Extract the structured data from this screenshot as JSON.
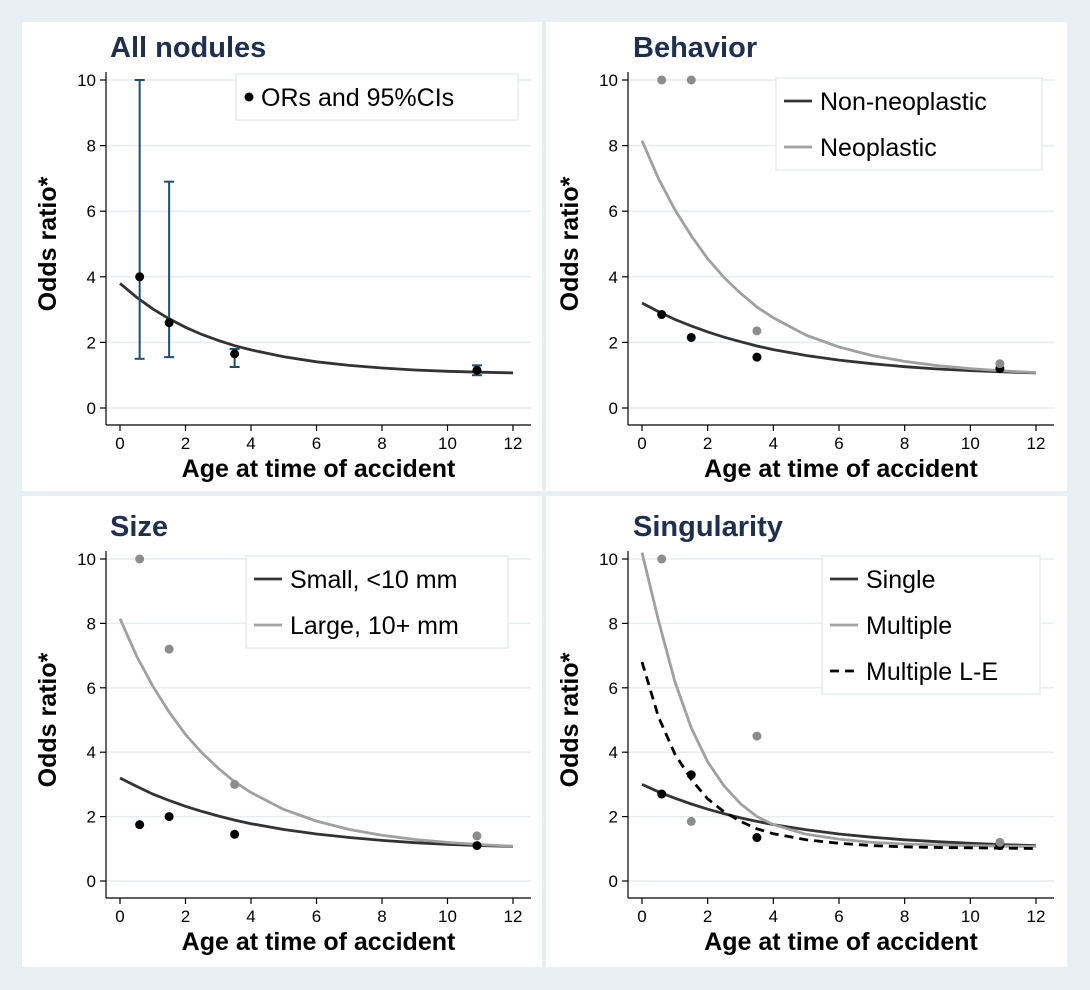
{
  "chart_data": [
    {
      "type": "scatter",
      "title": "All nodules",
      "xlabel": "Age at time of accident",
      "ylabel": "Odds ratio*",
      "xlim": [
        0,
        12
      ],
      "ylim": [
        0,
        10
      ],
      "xticks": [
        "0",
        "2",
        "4",
        "6",
        "8",
        "10",
        "12"
      ],
      "yticks": [
        "0",
        "2",
        "4",
        "6",
        "8",
        "10"
      ],
      "grid": true,
      "legend_position": "top-right",
      "series": [
        {
          "kind": "points_ci",
          "name": "ORs and 95%CIs",
          "color": "#000000",
          "ci_color": "#1b4f72",
          "points": [
            {
              "x": 0.6,
              "y": 4.0,
              "lo": 1.5,
              "hi": 10.0
            },
            {
              "x": 1.5,
              "y": 2.6,
              "lo": 1.55,
              "hi": 6.9
            },
            {
              "x": 3.5,
              "y": 1.65,
              "lo": 1.25,
              "hi": 1.8
            },
            {
              "x": 10.9,
              "y": 1.15,
              "lo": 1.0,
              "hi": 1.3
            }
          ]
        },
        {
          "kind": "curve",
          "color": "#333333",
          "dash": false,
          "x": [
            0,
            0.5,
            1,
            1.5,
            2,
            2.5,
            3,
            3.5,
            4,
            5,
            6,
            7,
            8,
            9,
            10,
            11,
            12
          ],
          "y": [
            3.8,
            3.38,
            3.02,
            2.72,
            2.46,
            2.24,
            2.06,
            1.9,
            1.77,
            1.56,
            1.41,
            1.3,
            1.22,
            1.16,
            1.12,
            1.09,
            1.07
          ]
        }
      ]
    },
    {
      "type": "scatter",
      "title": "Behavior",
      "xlabel": "Age at time of accident",
      "ylabel": "Odds ratio*",
      "xlim": [
        0,
        12
      ],
      "ylim": [
        0,
        10
      ],
      "xticks": [
        "0",
        "2",
        "4",
        "6",
        "8",
        "10",
        "12"
      ],
      "yticks": [
        "0",
        "2",
        "4",
        "6",
        "8",
        "10"
      ],
      "grid": true,
      "legend_position": "top-right",
      "series": [
        {
          "kind": "curve",
          "name": "Non-neoplastic",
          "color": "#333333",
          "dash": false,
          "x": [
            0,
            0.5,
            1,
            1.5,
            2,
            2.5,
            3,
            3.5,
            4,
            5,
            6,
            7,
            8,
            9,
            10,
            11,
            12
          ],
          "y": [
            3.2,
            2.94,
            2.7,
            2.5,
            2.32,
            2.16,
            2.02,
            1.89,
            1.78,
            1.6,
            1.46,
            1.35,
            1.26,
            1.19,
            1.14,
            1.1,
            1.07
          ]
        },
        {
          "kind": "curve",
          "name": "Neoplastic",
          "color": "#a0a0a0",
          "dash": false,
          "x": [
            0,
            0.5,
            1,
            1.5,
            2,
            2.5,
            3,
            3.5,
            4,
            5,
            6,
            7,
            8,
            9,
            10,
            11,
            12
          ],
          "y": [
            8.15,
            7.0,
            6.05,
            5.25,
            4.55,
            3.98,
            3.5,
            3.08,
            2.75,
            2.22,
            1.86,
            1.6,
            1.42,
            1.29,
            1.2,
            1.13,
            1.08
          ]
        },
        {
          "kind": "points",
          "color": "#000000",
          "points": [
            {
              "x": 0.6,
              "y": 2.85
            },
            {
              "x": 1.5,
              "y": 2.15
            },
            {
              "x": 3.5,
              "y": 1.55
            },
            {
              "x": 10.9,
              "y": 1.2
            }
          ]
        },
        {
          "kind": "points",
          "color": "#8c8c8c",
          "points": [
            {
              "x": 0.6,
              "y": 10.0
            },
            {
              "x": 1.5,
              "y": 10.0
            },
            {
              "x": 3.5,
              "y": 2.35
            },
            {
              "x": 10.9,
              "y": 1.35
            }
          ]
        }
      ]
    },
    {
      "type": "scatter",
      "title": "Size",
      "xlabel": "Age at time of accident",
      "ylabel": "Odds ratio*",
      "xlim": [
        0,
        12
      ],
      "ylim": [
        0,
        10
      ],
      "xticks": [
        "0",
        "2",
        "4",
        "6",
        "8",
        "10",
        "12"
      ],
      "yticks": [
        "0",
        "2",
        "4",
        "6",
        "8",
        "10"
      ],
      "grid": true,
      "legend_position": "top-right",
      "series": [
        {
          "kind": "curve",
          "name": "Small, <10 mm",
          "color": "#333333",
          "dash": false,
          "x": [
            0,
            0.5,
            1,
            1.5,
            2,
            2.5,
            3,
            3.5,
            4,
            5,
            6,
            7,
            8,
            9,
            10,
            11,
            12
          ],
          "y": [
            3.2,
            2.94,
            2.7,
            2.5,
            2.32,
            2.16,
            2.02,
            1.89,
            1.78,
            1.6,
            1.46,
            1.35,
            1.26,
            1.19,
            1.14,
            1.1,
            1.07
          ]
        },
        {
          "kind": "curve",
          "name": "Large, 10+ mm",
          "color": "#a0a0a0",
          "dash": false,
          "x": [
            0,
            0.5,
            1,
            1.5,
            2,
            2.5,
            3,
            3.5,
            4,
            5,
            6,
            7,
            8,
            9,
            10,
            11,
            12
          ],
          "y": [
            8.15,
            7.0,
            6.05,
            5.25,
            4.55,
            3.98,
            3.5,
            3.08,
            2.75,
            2.22,
            1.86,
            1.6,
            1.42,
            1.29,
            1.2,
            1.13,
            1.08
          ]
        },
        {
          "kind": "points",
          "color": "#000000",
          "points": [
            {
              "x": 0.6,
              "y": 1.75
            },
            {
              "x": 1.5,
              "y": 2.0
            },
            {
              "x": 3.5,
              "y": 1.45
            },
            {
              "x": 10.9,
              "y": 1.1
            }
          ]
        },
        {
          "kind": "points",
          "color": "#8c8c8c",
          "points": [
            {
              "x": 0.6,
              "y": 10.0
            },
            {
              "x": 1.5,
              "y": 7.2
            },
            {
              "x": 3.5,
              "y": 3.0
            },
            {
              "x": 10.9,
              "y": 1.4
            }
          ]
        }
      ]
    },
    {
      "type": "scatter",
      "title": "Singularity",
      "xlabel": "Age at time of accident",
      "ylabel": "Odds ratio*",
      "xlim": [
        0,
        12
      ],
      "ylim": [
        0,
        10
      ],
      "xticks": [
        "0",
        "2",
        "4",
        "6",
        "8",
        "10",
        "12"
      ],
      "yticks": [
        "0",
        "2",
        "4",
        "6",
        "8",
        "10"
      ],
      "grid": true,
      "legend_position": "top-right",
      "series": [
        {
          "kind": "curve",
          "name": "Single",
          "color": "#333333",
          "dash": false,
          "x": [
            0,
            0.5,
            1,
            1.5,
            2,
            2.5,
            3,
            3.5,
            4,
            5,
            6,
            7,
            8,
            9,
            10,
            11,
            12
          ],
          "y": [
            3.0,
            2.77,
            2.57,
            2.39,
            2.23,
            2.09,
            1.96,
            1.85,
            1.75,
            1.59,
            1.46,
            1.36,
            1.28,
            1.22,
            1.17,
            1.13,
            1.1
          ]
        },
        {
          "kind": "curve",
          "name": "Multiple",
          "color": "#a0a0a0",
          "dash": false,
          "x": [
            0,
            0.5,
            1,
            1.5,
            2,
            2.5,
            3,
            3.5,
            4,
            5,
            6,
            7,
            8,
            9,
            10,
            11,
            12
          ],
          "y": [
            10.2,
            8.1,
            6.2,
            4.75,
            3.7,
            2.95,
            2.4,
            2.0,
            1.75,
            1.45,
            1.3,
            1.2,
            1.15,
            1.12,
            1.1,
            1.08,
            1.07
          ]
        },
        {
          "kind": "curve",
          "name": "Multiple L-E",
          "color": "#000000",
          "dash": true,
          "x": [
            0,
            0.5,
            1,
            1.5,
            2,
            2.5,
            3,
            3.5,
            4,
            5,
            6,
            7,
            8,
            9,
            10,
            11,
            12
          ],
          "y": [
            6.8,
            5.1,
            3.95,
            3.15,
            2.55,
            2.15,
            1.85,
            1.62,
            1.47,
            1.28,
            1.17,
            1.1,
            1.06,
            1.04,
            1.03,
            1.02,
            1.01
          ]
        },
        {
          "kind": "points",
          "color": "#000000",
          "points": [
            {
              "x": 0.6,
              "y": 2.7
            },
            {
              "x": 1.5,
              "y": 3.3
            },
            {
              "x": 3.5,
              "y": 1.35
            },
            {
              "x": 10.9,
              "y": 1.1
            }
          ]
        },
        {
          "kind": "points",
          "color": "#8c8c8c",
          "points": [
            {
              "x": 0.6,
              "y": 10.0
            },
            {
              "x": 1.5,
              "y": 1.85
            },
            {
              "x": 3.5,
              "y": 4.5
            },
            {
              "x": 10.9,
              "y": 1.2
            }
          ]
        }
      ]
    }
  ]
}
